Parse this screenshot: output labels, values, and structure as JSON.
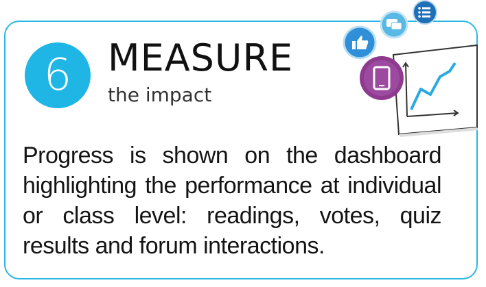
{
  "step": {
    "number": "6"
  },
  "heading": {
    "title": "MEASURE",
    "subtitle": "the impact"
  },
  "description": "Progress is shown on the dashboard highlighting the performance at individual or class level: readings, votes, quiz results and forum interactions.",
  "colors": {
    "accent": "#29b6e3",
    "badge": "#1fb6e6",
    "icon_like": "#2f8fd8",
    "icon_chat": "#5ab8e4",
    "icon_list": "#1e6fb8",
    "icon_tablet": "#8e3a8e"
  },
  "icons": [
    "thumbs-up-icon",
    "chat-icon",
    "list-icon",
    "tablet-icon",
    "chart-board-icon"
  ]
}
